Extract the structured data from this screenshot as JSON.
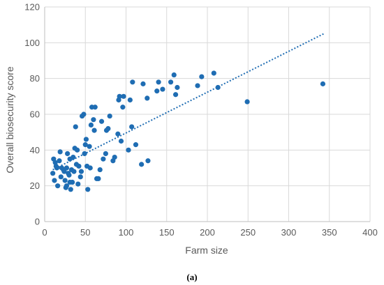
{
  "caption": "(a)",
  "chart_data": {
    "type": "scatter",
    "title": "",
    "xlabel": "Farm size",
    "ylabel": "Overall biosecurity score",
    "xlim": [
      0,
      400
    ],
    "ylim": [
      0,
      120
    ],
    "xticks": [
      0,
      50,
      100,
      150,
      200,
      250,
      300,
      350,
      400
    ],
    "yticks": [
      0,
      20,
      40,
      60,
      80,
      100,
      120
    ],
    "grid": true,
    "legend": "none",
    "series": [
      {
        "color": "#1f6db3",
        "trendline": {
          "type": "linear",
          "style": "dotted",
          "x_range": [
            10,
            343
          ],
          "y_start": 29,
          "y_end": 105
        },
        "points": [
          [
            10,
            27
          ],
          [
            11,
            35
          ],
          [
            12,
            23
          ],
          [
            13,
            33
          ],
          [
            14,
            31
          ],
          [
            15,
            30
          ],
          [
            16,
            20
          ],
          [
            18,
            34
          ],
          [
            19,
            39
          ],
          [
            20,
            25
          ],
          [
            21,
            30
          ],
          [
            23,
            29
          ],
          [
            24,
            28
          ],
          [
            25,
            23
          ],
          [
            26,
            19
          ],
          [
            27,
            20
          ],
          [
            27,
            30
          ],
          [
            28,
            38
          ],
          [
            29,
            27
          ],
          [
            30,
            26
          ],
          [
            31,
            22
          ],
          [
            31,
            35
          ],
          [
            32,
            18
          ],
          [
            33,
            29
          ],
          [
            34,
            22
          ],
          [
            35,
            36
          ],
          [
            36,
            28
          ],
          [
            37,
            41
          ],
          [
            38,
            53
          ],
          [
            39,
            32
          ],
          [
            40,
            40
          ],
          [
            41,
            21
          ],
          [
            42,
            31
          ],
          [
            44,
            25
          ],
          [
            45,
            28
          ],
          [
            46,
            59
          ],
          [
            48,
            60
          ],
          [
            49,
            38
          ],
          [
            50,
            43
          ],
          [
            51,
            46
          ],
          [
            52,
            31
          ],
          [
            53,
            18
          ],
          [
            55,
            42
          ],
          [
            56,
            30
          ],
          [
            57,
            54
          ],
          [
            58,
            64
          ],
          [
            60,
            57
          ],
          [
            61,
            51
          ],
          [
            62,
            64
          ],
          [
            64,
            24
          ],
          [
            66,
            24
          ],
          [
            68,
            29
          ],
          [
            70,
            56
          ],
          [
            72,
            35
          ],
          [
            75,
            38
          ],
          [
            76,
            51
          ],
          [
            78,
            52
          ],
          [
            80,
            59
          ],
          [
            84,
            34
          ],
          [
            86,
            36
          ],
          [
            90,
            49
          ],
          [
            91,
            68
          ],
          [
            92,
            70
          ],
          [
            94,
            45
          ],
          [
            96,
            64
          ],
          [
            97,
            70
          ],
          [
            103,
            40
          ],
          [
            105,
            68
          ],
          [
            107,
            53
          ],
          [
            108,
            78
          ],
          [
            112,
            43
          ],
          [
            119,
            32
          ],
          [
            121,
            77
          ],
          [
            126,
            69
          ],
          [
            127,
            34
          ],
          [
            138,
            73
          ],
          [
            140,
            78
          ],
          [
            145,
            74
          ],
          [
            155,
            78
          ],
          [
            159,
            82
          ],
          [
            161,
            71
          ],
          [
            163,
            75
          ],
          [
            188,
            76
          ],
          [
            193,
            81
          ],
          [
            208,
            83
          ],
          [
            213,
            75
          ],
          [
            249,
            67
          ],
          [
            342,
            77
          ]
        ]
      }
    ]
  }
}
